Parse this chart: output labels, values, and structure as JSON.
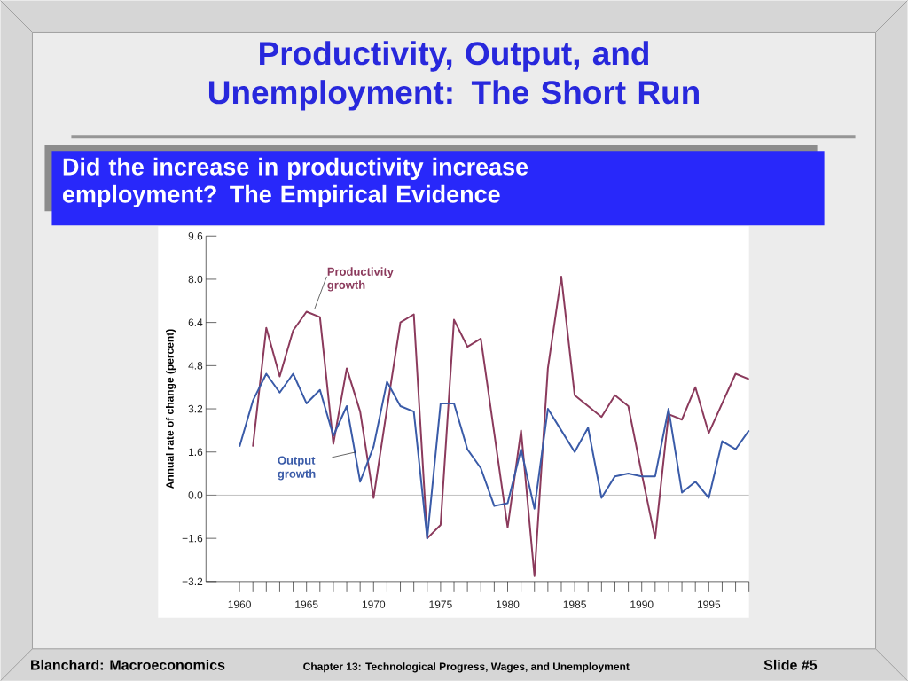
{
  "chart_data": {
    "type": "line",
    "title": "Productivity, Output, and Unemployment: The Short Run",
    "subtitle": "Did the increase in productivity increase employment?  The Empirical Evidence",
    "ylabel": "Annual rate of change (percent)",
    "x": [
      1960,
      1961,
      1962,
      1963,
      1964,
      1965,
      1966,
      1967,
      1968,
      1969,
      1970,
      1971,
      1972,
      1973,
      1974,
      1975,
      1976,
      1977,
      1978,
      1979,
      1980,
      1981,
      1982,
      1983,
      1984,
      1985,
      1986,
      1987,
      1988,
      1989,
      1990,
      1991,
      1992,
      1993,
      1994,
      1995,
      1996,
      1997,
      1998
    ],
    "series": [
      {
        "name": "Productivity growth",
        "color": "#8b3a5c",
        "values": [
          null,
          1.8,
          6.2,
          4.4,
          6.1,
          6.8,
          6.6,
          1.9,
          4.7,
          3.1,
          -0.1,
          3.2,
          6.4,
          6.7,
          -1.6,
          -1.1,
          6.5,
          5.5,
          5.8,
          2.3,
          -1.2,
          2.4,
          -3.0,
          4.7,
          8.1,
          3.7,
          3.3,
          2.9,
          3.7,
          3.3,
          0.8,
          -1.6,
          3.0,
          2.8,
          4.0,
          2.3,
          3.4,
          4.5,
          4.3
        ]
      },
      {
        "name": "Output growth",
        "color": "#3a5ba8",
        "values": [
          1.8,
          3.5,
          4.5,
          3.8,
          4.5,
          3.4,
          3.9,
          2.2,
          3.3,
          0.5,
          1.8,
          4.2,
          3.3,
          3.1,
          -1.6,
          3.4,
          3.4,
          1.7,
          1.0,
          -0.4,
          -0.3,
          1.7,
          -0.5,
          3.2,
          2.4,
          1.6,
          2.5,
          -0.1,
          0.7,
          0.8,
          0.7,
          0.7,
          3.2,
          0.1,
          0.5,
          -0.1,
          2.0,
          1.7,
          2.4
        ]
      }
    ],
    "xlim": [
      1957.5,
      1998
    ],
    "xticks": [
      1960,
      1965,
      1970,
      1975,
      1980,
      1985,
      1990,
      1995
    ],
    "ylim": [
      -3.2,
      9.6
    ],
    "yticks": [
      {
        "value": -3.2,
        "label": "−3.2"
      },
      {
        "value": -1.6,
        "label": "−1.6"
      },
      {
        "value": 0,
        "label": "0.0"
      },
      1.6,
      3.2,
      4.8,
      6.4,
      {
        "value": 8,
        "label": "8.0"
      },
      9.6
    ],
    "ref_lines": [
      {
        "axis": "y",
        "value": 0,
        "color": "#999999"
      }
    ],
    "grid": false,
    "marker": "none",
    "line_style": "solid",
    "annotations": [
      "Blanchard: Macroeconomics",
      "Chapter 13: Technological Progress, Wages, and Unemployment",
      "Slide #5"
    ]
  }
}
